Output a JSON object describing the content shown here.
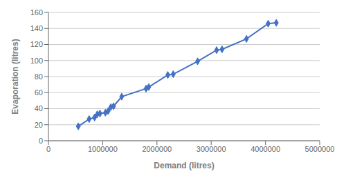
{
  "chart_data": {
    "type": "line",
    "x": [
      550000,
      750000,
      850000,
      900000,
      950000,
      1050000,
      1100000,
      1150000,
      1200000,
      1350000,
      1800000,
      1850000,
      2200000,
      2300000,
      2750000,
      3100000,
      3200000,
      3650000,
      4050000,
      4200000
    ],
    "values": [
      18,
      27,
      29,
      33,
      34,
      35,
      37,
      42,
      43,
      55,
      65,
      67,
      82,
      83,
      99,
      113,
      114,
      127,
      146,
      147
    ],
    "color": "#4472C4",
    "marker": "diamond",
    "xlabel": "Demand (litres)",
    "ylabel": "Evaporation (litres)",
    "xlim": [
      0,
      5000000
    ],
    "ylim": [
      0,
      160
    ],
    "xticks": [
      0,
      1000000,
      2000000,
      3000000,
      4000000,
      5000000
    ],
    "yticks": [
      0,
      20,
      40,
      60,
      80,
      100,
      120,
      140,
      160
    ],
    "grid": "y"
  }
}
